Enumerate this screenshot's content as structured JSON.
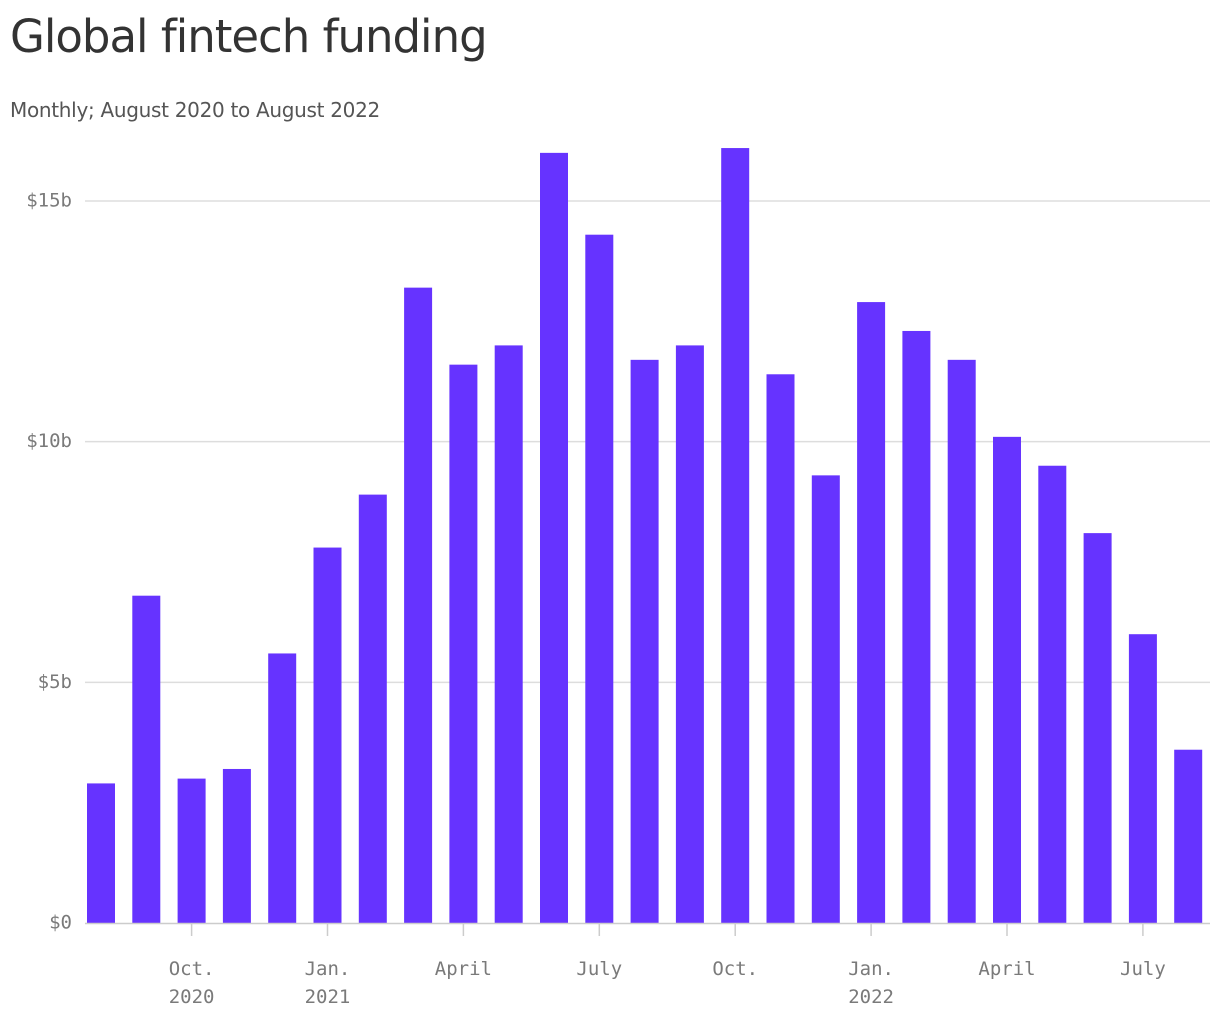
{
  "chart_data": {
    "type": "bar",
    "title": "Global fintech funding",
    "subtitle": "Monthly; August 2020 to August 2022",
    "months": [
      "2020-08",
      "2020-09",
      "2020-10",
      "2020-11",
      "2020-12",
      "2021-01",
      "2021-02",
      "2021-03",
      "2021-04",
      "2021-05",
      "2021-06",
      "2021-07",
      "2021-08",
      "2021-09",
      "2021-10",
      "2021-11",
      "2021-12",
      "2022-01",
      "2022-02",
      "2022-03",
      "2022-04",
      "2022-05",
      "2022-06",
      "2022-07",
      "2022-08"
    ],
    "values": [
      2.9,
      6.8,
      3.0,
      3.2,
      5.6,
      7.8,
      8.9,
      13.2,
      11.6,
      12.0,
      16.0,
      14.3,
      11.7,
      12.0,
      16.1,
      11.4,
      9.3,
      12.9,
      12.3,
      11.7,
      10.1,
      9.5,
      8.1,
      6.0,
      3.6
    ],
    "unit": "$ billions",
    "ylim": [
      0,
      16.5
    ],
    "y_ticks": [
      {
        "value": 0,
        "label": "$0"
      },
      {
        "value": 5,
        "label": "$5b"
      },
      {
        "value": 10,
        "label": "$10b"
      },
      {
        "value": 15,
        "label": "$15b"
      }
    ],
    "x_ticks": [
      {
        "bar_index": 2,
        "line1": "Oct.",
        "line2": "2020"
      },
      {
        "bar_index": 5,
        "line1": "Jan.",
        "line2": "2021"
      },
      {
        "bar_index": 8,
        "line1": "April",
        "line2": ""
      },
      {
        "bar_index": 11,
        "line1": "July",
        "line2": ""
      },
      {
        "bar_index": 14,
        "line1": "Oct.",
        "line2": ""
      },
      {
        "bar_index": 17,
        "line1": "Jan.",
        "line2": "2022"
      },
      {
        "bar_index": 20,
        "line1": "April",
        "line2": ""
      },
      {
        "bar_index": 23,
        "line1": "July",
        "line2": ""
      }
    ],
    "grid": true,
    "legend": "none",
    "bar_color": "#6633ff",
    "grid_color": "#dddddd",
    "axis_color": "#cccccc"
  }
}
